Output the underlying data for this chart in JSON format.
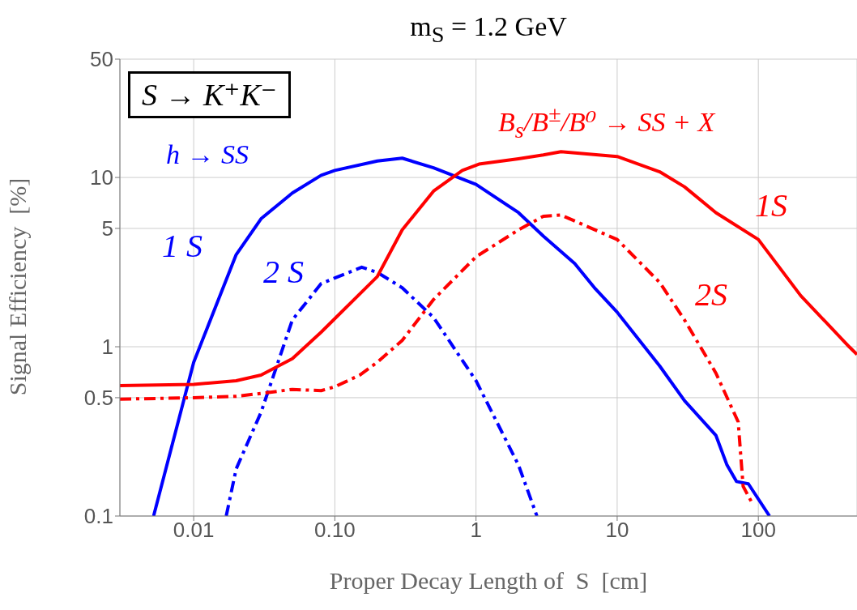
{
  "chart_data": {
    "type": "line",
    "title": "m$_{S}$ = 1.2 GeV",
    "xlabel": "Proper Decay Length of  S  [cm]",
    "ylabel": "Signal Efficiency  [%]",
    "log": "xy",
    "grid": true,
    "xlim": [
      0.003,
      500
    ],
    "xticks": [
      0.01,
      {
        "value": 0.1,
        "label": "0.10"
      },
      1,
      10,
      100
    ],
    "ylim": [
      0.1,
      50
    ],
    "yticks": [
      0.1,
      0.5,
      1,
      5,
      10,
      50
    ],
    "annotations": [
      "S → K⁺K⁻",
      "h → SS",
      "B$_{s}$/B$^{±}$/B⁰ → SS + X"
    ],
    "series": [
      {
        "name": "1 S",
        "color": "#0000ff",
        "line_style": "solid",
        "x": [
          0.0052,
          0.01,
          0.02,
          0.03,
          0.05,
          0.08,
          0.1,
          0.2,
          0.3,
          0.5,
          1,
          2,
          3,
          5,
          7,
          10,
          20,
          30,
          50,
          60,
          70,
          85,
          120
        ],
        "values": [
          0.1,
          0.81,
          3.5,
          5.7,
          8.1,
          10.3,
          11,
          12.5,
          13,
          11.4,
          9.1,
          6.2,
          4.5,
          3.1,
          2.2,
          1.6,
          0.77,
          0.48,
          0.3,
          0.2,
          0.16,
          0.155,
          0.1
        ]
      },
      {
        "name": "2 S",
        "color": "#0000ff",
        "line_style": "dashed",
        "x": [
          0.017,
          0.02,
          0.03,
          0.05,
          0.08,
          0.1,
          0.155,
          0.2,
          0.3,
          0.5,
          1,
          2,
          2.7
        ],
        "values": [
          0.1,
          0.19,
          0.41,
          1.44,
          2.36,
          2.55,
          2.95,
          2.75,
          2.23,
          1.49,
          0.63,
          0.2,
          0.1
        ]
      },
      {
        "name": "1S",
        "color": "#ff0000",
        "line_style": "solid",
        "x": [
          0.003,
          0.01,
          0.02,
          0.03,
          0.05,
          0.08,
          0.2,
          0.3,
          0.5,
          0.8,
          1.05,
          2,
          3,
          4,
          10,
          20,
          30,
          50,
          100,
          200,
          440,
          500
        ],
        "values": [
          0.59,
          0.6,
          0.63,
          0.68,
          0.85,
          1.22,
          2.6,
          4.9,
          8.3,
          11,
          12,
          12.9,
          13.6,
          14.2,
          13.3,
          10.8,
          8.8,
          6.2,
          4.3,
          2,
          1,
          0.9
        ]
      },
      {
        "name": "2S",
        "color": "#ff0000",
        "line_style": "dashed",
        "x": [
          0.003,
          0.01,
          0.02,
          0.03,
          0.05,
          0.08,
          0.1,
          0.15,
          0.2,
          0.3,
          0.5,
          1,
          2,
          3,
          4,
          10,
          20,
          30,
          50,
          72,
          78,
          90
        ],
        "values": [
          0.49,
          0.5,
          0.51,
          0.53,
          0.56,
          0.55,
          0.58,
          0.68,
          0.81,
          1.09,
          1.9,
          3.4,
          4.9,
          5.9,
          6.0,
          4.3,
          2.4,
          1.44,
          0.7,
          0.36,
          0.15,
          0.12
        ]
      }
    ]
  }
}
